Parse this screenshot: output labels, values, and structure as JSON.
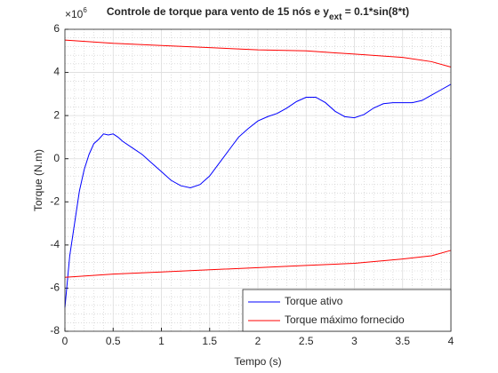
{
  "chart_data": {
    "type": "line",
    "title": [
      "Controle de torque para vento de 15 nós e y",
      "ext",
      " = 0.1*sin(8*t)"
    ],
    "y_exponent": [
      "×10",
      "6"
    ],
    "xlabel": "Tempo (s)",
    "ylabel": "Torque (N.m)",
    "xlim": [
      0,
      4
    ],
    "xticks": [
      0,
      0.5,
      1,
      1.5,
      2,
      2.5,
      3,
      3.5,
      4
    ],
    "ylim": [
      -8,
      6
    ],
    "yticks": [
      -8,
      -6,
      -4,
      -2,
      0,
      2,
      4,
      6
    ],
    "grid": true,
    "minor_grid": true,
    "minor_subdivisions": 5,
    "legend": "southeast",
    "series": [
      {
        "name": "Torque ativo",
        "color": "#0000ff",
        "x": [
          0,
          0.05,
          0.1,
          0.15,
          0.2,
          0.25,
          0.3,
          0.35,
          0.4,
          0.45,
          0.5,
          0.55,
          0.6,
          0.7,
          0.8,
          0.9,
          1.0,
          1.1,
          1.2,
          1.3,
          1.4,
          1.5,
          1.6,
          1.7,
          1.8,
          1.9,
          2.0,
          2.1,
          2.2,
          2.3,
          2.4,
          2.5,
          2.6,
          2.7,
          2.8,
          2.9,
          3.0,
          3.1,
          3.2,
          3.3,
          3.4,
          3.5,
          3.6,
          3.7,
          3.8,
          3.9,
          4.0
        ],
        "values": [
          -6.9,
          -4.5,
          -3,
          -1.5,
          -0.5,
          0.2,
          0.7,
          0.9,
          1.15,
          1.1,
          1.15,
          1.0,
          0.8,
          0.5,
          0.2,
          -0.2,
          -0.6,
          -1.0,
          -1.25,
          -1.35,
          -1.2,
          -0.8,
          -0.2,
          0.4,
          1.0,
          1.4,
          1.75,
          1.95,
          2.1,
          2.35,
          2.65,
          2.85,
          2.85,
          2.6,
          2.2,
          1.95,
          1.9,
          2.05,
          2.35,
          2.55,
          2.6,
          2.6,
          2.6,
          2.7,
          2.95,
          3.2,
          3.45
        ]
      },
      {
        "name": "Torque máximo fornecido",
        "color": "#ff0000",
        "x": [
          0,
          0.5,
          1,
          1.5,
          2,
          2.5,
          3,
          3.5,
          3.8,
          4
        ],
        "values": [
          5.5,
          5.35,
          5.25,
          5.15,
          5.05,
          5.0,
          4.85,
          4.7,
          4.5,
          4.25
        ]
      },
      {
        "color": "#ff0000",
        "x": [
          0,
          0.5,
          1,
          1.5,
          2,
          2.5,
          3,
          3.5,
          3.8,
          4
        ],
        "values": [
          -5.5,
          -5.35,
          -5.25,
          -5.15,
          -5.05,
          -4.95,
          -4.85,
          -4.65,
          -4.5,
          -4.25
        ]
      }
    ]
  }
}
